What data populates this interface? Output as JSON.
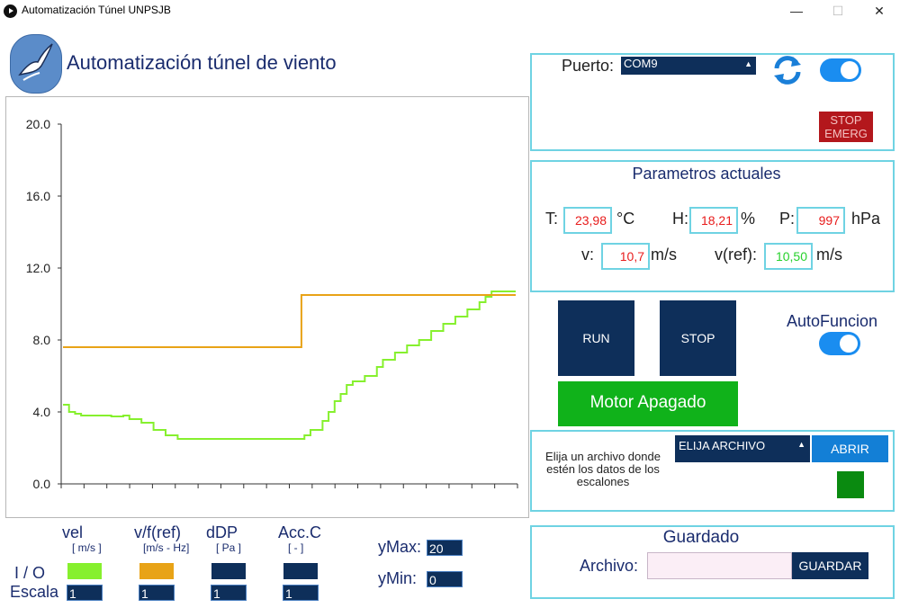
{
  "window": {
    "title": "Automatización Túnel UNPSJB",
    "minimize": "—",
    "maximize": "☐",
    "close": "✕"
  },
  "header": {
    "title": "Automatización túnel de viento"
  },
  "connection": {
    "port_label": "Puerto:",
    "port_value": "COM9",
    "stop_label_1": "STOP",
    "stop_label_2": "EMERG",
    "toggle_on": true
  },
  "params": {
    "title": "Parametros actuales",
    "T_label": "T:",
    "T_value": "23,98",
    "T_unit": "°C",
    "H_label": "H:",
    "H_value": "18,21",
    "H_unit": "%",
    "P_label": "P:",
    "P_value": "997",
    "P_unit": "hPa",
    "v_label": "v:",
    "v_value": "10,7",
    "v_unit": "m/s",
    "vref_label": "v(ref):",
    "vref_value": "10,50",
    "vref_unit": "m/s"
  },
  "controls": {
    "run_label": "RUN",
    "stop_label": "STOP",
    "auto_label": "AutoFuncion",
    "motor_status": "Motor Apagado"
  },
  "file_select": {
    "description": "Elija un archivo donde estén los datos de los escalones",
    "dropdown_value": "ELIJA ARCHIVO",
    "open_label": "ABRIR"
  },
  "save": {
    "title": "Guardado",
    "file_label": "Archivo:",
    "file_value": "",
    "save_label": "GUARDAR"
  },
  "legend": {
    "io_label": "I / O",
    "scale_label": "Escala",
    "ymax_label": "yMax:",
    "ymax_value": "20",
    "ymin_label": "yMin:",
    "ymin_value": "0",
    "series": [
      {
        "name": "vel",
        "unit": "[ m/s ]",
        "color": "#86f02e",
        "scale": "1"
      },
      {
        "name": "v/f(ref)",
        "unit": "[m/s - Hz]",
        "color": "#e8a317",
        "scale": "1"
      },
      {
        "name": "dDP",
        "unit": "[ Pa ]",
        "color": "#0e2f5a",
        "scale": "1"
      },
      {
        "name": "Acc.C",
        "unit": "[ - ]",
        "color": "#0e2f5a",
        "scale": "1"
      }
    ]
  },
  "colors": {
    "accent": "#6fd3e3",
    "navy": "#0e2f5a",
    "green_status": "#10b21a",
    "red_stop": "#b3171c"
  },
  "icons": {
    "refresh": "refresh-icon",
    "logo": "albatross-logo"
  },
  "chart_data": {
    "type": "line",
    "ylim": [
      0,
      20
    ],
    "yticks": [
      "0.0",
      "4.0",
      "8.0",
      "12.0",
      "16.0",
      "20.0"
    ],
    "xticks_count": 21,
    "series": [
      {
        "name": "vel",
        "color": "#86f02e",
        "points": [
          [
            0,
            4.4
          ],
          [
            1,
            4.0
          ],
          [
            2,
            3.9
          ],
          [
            3,
            3.8
          ],
          [
            5,
            3.8
          ],
          [
            8,
            3.75
          ],
          [
            10,
            3.8
          ],
          [
            11,
            3.6
          ],
          [
            13,
            3.4
          ],
          [
            15,
            3.0
          ],
          [
            17,
            2.7
          ],
          [
            19,
            2.5
          ],
          [
            22,
            2.5
          ],
          [
            35,
            2.5
          ],
          [
            38,
            2.5
          ],
          [
            40,
            2.7
          ],
          [
            41,
            3.0
          ],
          [
            43,
            3.5
          ],
          [
            44,
            4.0
          ],
          [
            45,
            4.6
          ],
          [
            46,
            5.0
          ],
          [
            47,
            5.5
          ],
          [
            48,
            5.7
          ],
          [
            50,
            6.0
          ],
          [
            52,
            6.5
          ],
          [
            53,
            6.9
          ],
          [
            55,
            7.3
          ],
          [
            57,
            7.7
          ],
          [
            59,
            8.0
          ],
          [
            61,
            8.5
          ],
          [
            63,
            8.9
          ],
          [
            65,
            9.3
          ],
          [
            67,
            9.7
          ],
          [
            69,
            10.1
          ],
          [
            70,
            10.4
          ],
          [
            71,
            10.7
          ],
          [
            72,
            10.7
          ],
          [
            74,
            10.7
          ],
          [
            75,
            10.7
          ]
        ]
      },
      {
        "name": "v/f(ref)",
        "color": "#e8a317",
        "points": [
          [
            0,
            7.6
          ],
          [
            39,
            7.6
          ],
          [
            39.5,
            10.5
          ],
          [
            75,
            10.5
          ]
        ]
      }
    ]
  }
}
